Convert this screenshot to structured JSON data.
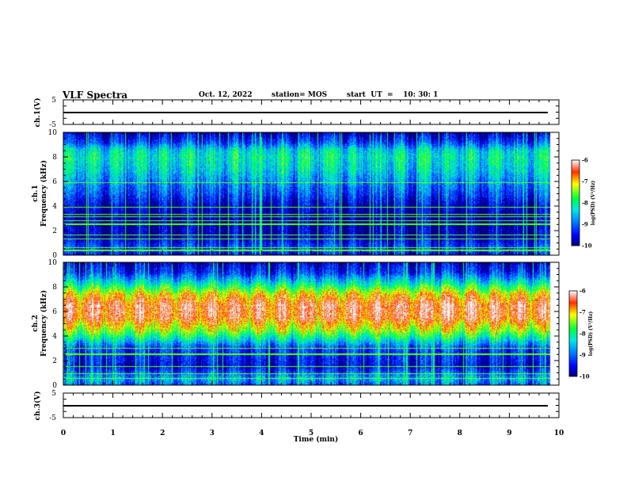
{
  "header": {
    "title": "VLF Spectra",
    "date": "Oct. 12, 2022",
    "station": "station= MOS",
    "start_ut": "start  UT  =    10: 30: 1"
  },
  "chart_data": [
    {
      "type": "line",
      "panel": "ch1-waveform",
      "ylabel": "ch.1(V)",
      "xlim": [
        0,
        10
      ],
      "ylim": [
        -5,
        5
      ],
      "y_ticks": [
        "5",
        "-5"
      ],
      "series": [
        {
          "x": [
            0,
            9.83
          ],
          "y": [
            0,
            0
          ]
        }
      ]
    },
    {
      "type": "heatmap",
      "panel": "ch1-spectrogram",
      "ylabel": "ch.1\nFrequency (kHz)",
      "xlim": [
        0,
        10
      ],
      "ylim": [
        0,
        10
      ],
      "y_ticks": [
        "0",
        "2",
        "4",
        "6",
        "8",
        "10"
      ],
      "data_x_end": 9.83,
      "value_range": [
        -10,
        -6
      ],
      "band_profile": {
        "freq_khz": [
          0,
          0.6,
          1.5,
          3.0,
          4.0,
          5.0,
          6.0,
          7.0,
          8.0,
          8.6,
          9.2,
          10
        ],
        "log_psd": [
          -9.5,
          -9.2,
          -9.8,
          -9.9,
          -9.7,
          -9.2,
          -8.8,
          -8.4,
          -8.2,
          -8.4,
          -9.2,
          -9.8
        ]
      },
      "line_freqs_khz": [
        0.35,
        0.6,
        1.3,
        1.6,
        2.5,
        2.8,
        3.1,
        3.3,
        3.9,
        5.9
      ],
      "colorbar": {
        "ticks": [
          "-6",
          "-7",
          "-8",
          "-9",
          "-10"
        ],
        "label": "log(PSD) (V²/Hz)"
      }
    },
    {
      "type": "heatmap",
      "panel": "ch2-spectrogram",
      "ylabel": "ch.2\nFrequency (kHz)",
      "xlim": [
        0,
        10
      ],
      "ylim": [
        0,
        10
      ],
      "y_ticks": [
        "0",
        "2",
        "4",
        "6",
        "8",
        "10"
      ],
      "data_x_end": 9.83,
      "value_range": [
        -10,
        -6
      ],
      "band_profile": {
        "freq_khz": [
          0,
          0.5,
          1.5,
          3.0,
          3.6,
          4.4,
          5.5,
          6.5,
          7.4,
          8.3,
          9.2,
          10
        ],
        "log_psd": [
          -9.0,
          -8.6,
          -9.6,
          -9.2,
          -8.4,
          -7.4,
          -6.5,
          -6.4,
          -7.0,
          -8.2,
          -9.3,
          -9.7
        ]
      },
      "line_freqs_khz": [
        0.5,
        0.9,
        1.5,
        2.5,
        3.0
      ],
      "colorbar": {
        "ticks": [
          "-6",
          "-7",
          "-8",
          "-9",
          "-10"
        ],
        "label": "log(PSD) (V²/Hz)"
      }
    },
    {
      "type": "line",
      "panel": "ch3-waveform",
      "ylabel": "ch.3(V)",
      "xlim": [
        0,
        10
      ],
      "ylim": [
        -5,
        5
      ],
      "y_ticks": [
        "5",
        "-5"
      ],
      "series": [
        {
          "x": [
            0,
            9.83
          ],
          "y": [
            0,
            0
          ]
        }
      ]
    }
  ],
  "x_axis": {
    "label": "Time  (min)",
    "ticks": [
      "0",
      "1",
      "2",
      "3",
      "4",
      "5",
      "6",
      "7",
      "8",
      "9",
      "10"
    ]
  },
  "colormap": [
    "#00007a",
    "#0000ff",
    "#0090ff",
    "#00e6e6",
    "#00ff40",
    "#ffff00",
    "#ff3000",
    "#ffffff"
  ]
}
